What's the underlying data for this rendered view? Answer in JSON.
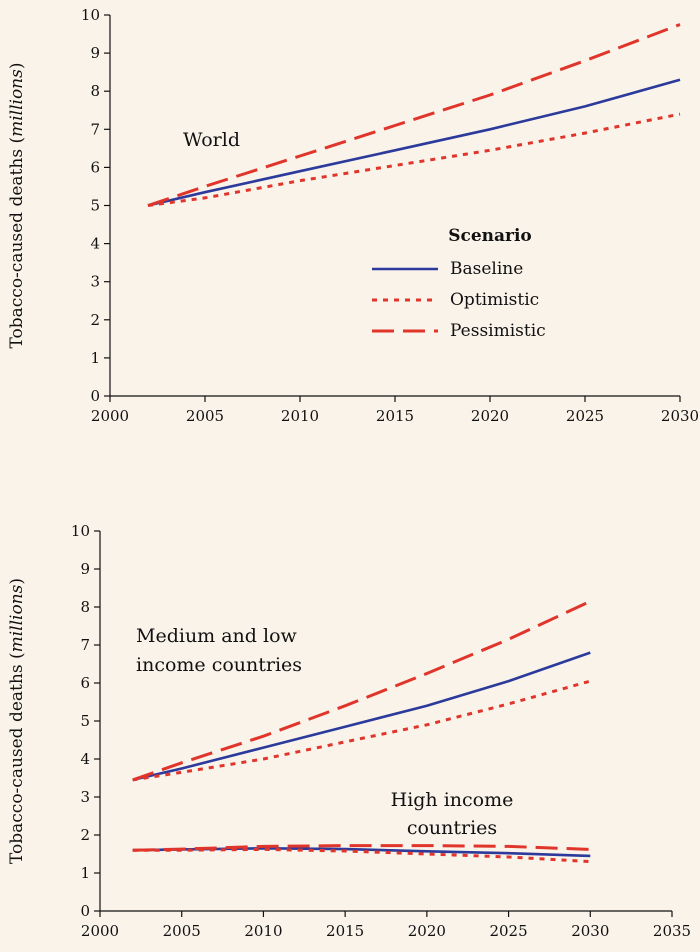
{
  "chart_data": [
    {
      "type": "line",
      "annotation": [
        "World"
      ],
      "ylabel_prefix": "Tobacco-caused deaths (",
      "ylabel_unit": "millions",
      "ylabel_suffix": ")",
      "xlim": [
        2000,
        2030
      ],
      "ylim": [
        0,
        10
      ],
      "xticks": [
        2000,
        2005,
        2010,
        2015,
        2020,
        2025,
        2030
      ],
      "yticks": [
        0,
        1,
        2,
        3,
        4,
        5,
        6,
        7,
        8,
        9,
        10
      ],
      "grid": false,
      "legend": {
        "title": "Scenario",
        "placement": "center-right",
        "entries": [
          "Baseline",
          "Optimistic",
          "Pessimistic"
        ]
      },
      "series": [
        {
          "name": "Baseline",
          "style": "solid",
          "color": "#2b3a9b",
          "x": [
            2002,
            2005,
            2010,
            2015,
            2020,
            2025,
            2030
          ],
          "y": [
            5.0,
            5.35,
            5.9,
            6.45,
            7.0,
            7.6,
            8.3
          ]
        },
        {
          "name": "Optimistic",
          "style": "dotted",
          "color": "#e0352b",
          "x": [
            2002,
            2005,
            2010,
            2015,
            2020,
            2025,
            2030
          ],
          "y": [
            5.0,
            5.2,
            5.65,
            6.05,
            6.45,
            6.9,
            7.4
          ]
        },
        {
          "name": "Pessimistic",
          "style": "dashed",
          "color": "#e0352b",
          "x": [
            2002,
            2005,
            2010,
            2015,
            2020,
            2025,
            2030
          ],
          "y": [
            5.0,
            5.5,
            6.3,
            7.1,
            7.9,
            8.8,
            9.75
          ]
        }
      ]
    },
    {
      "type": "line",
      "annotations": [
        [
          "Medium and low",
          "income countries"
        ],
        [
          "High income",
          "countries"
        ]
      ],
      "ylabel_prefix": "Tobacco-caused deaths (",
      "ylabel_unit": "millions",
      "ylabel_suffix": ")",
      "xlim": [
        2000,
        2035
      ],
      "ylim": [
        0,
        10
      ],
      "xticks": [
        2000,
        2005,
        2010,
        2015,
        2020,
        2025,
        2030,
        2035
      ],
      "yticks": [
        0,
        1,
        2,
        3,
        4,
        5,
        6,
        7,
        8,
        9,
        10
      ],
      "grid": false,
      "series": [
        {
          "group": "Medium and low income countries",
          "scenario": "Baseline",
          "style": "solid",
          "color": "#2b3a9b",
          "x": [
            2002,
            2005,
            2010,
            2015,
            2020,
            2025,
            2030
          ],
          "y": [
            3.45,
            3.75,
            4.3,
            4.85,
            5.4,
            6.05,
            6.8
          ]
        },
        {
          "group": "Medium and low income countries",
          "scenario": "Optimistic",
          "style": "dotted",
          "color": "#e0352b",
          "x": [
            2002,
            2005,
            2010,
            2015,
            2020,
            2025,
            2030
          ],
          "y": [
            3.45,
            3.65,
            4.0,
            4.45,
            4.9,
            5.45,
            6.05
          ]
        },
        {
          "group": "Medium and low income countries",
          "scenario": "Pessimistic",
          "style": "dashed",
          "color": "#e0352b",
          "x": [
            2002,
            2005,
            2010,
            2015,
            2020,
            2025,
            2030
          ],
          "y": [
            3.45,
            3.9,
            4.6,
            5.4,
            6.25,
            7.15,
            8.15
          ]
        },
        {
          "group": "High income countries",
          "scenario": "Baseline",
          "style": "solid",
          "color": "#2b3a9b",
          "x": [
            2002,
            2005,
            2010,
            2015,
            2020,
            2025,
            2030
          ],
          "y": [
            1.6,
            1.62,
            1.65,
            1.63,
            1.57,
            1.52,
            1.45
          ]
        },
        {
          "group": "High income countries",
          "scenario": "Optimistic",
          "style": "dotted",
          "color": "#e0352b",
          "x": [
            2002,
            2005,
            2010,
            2015,
            2020,
            2025,
            2030
          ],
          "y": [
            1.6,
            1.6,
            1.62,
            1.58,
            1.5,
            1.42,
            1.3
          ]
        },
        {
          "group": "High income countries",
          "scenario": "Pessimistic",
          "style": "dashed",
          "color": "#e0352b",
          "x": [
            2002,
            2005,
            2010,
            2015,
            2020,
            2025,
            2030
          ],
          "y": [
            1.6,
            1.63,
            1.7,
            1.72,
            1.72,
            1.7,
            1.62
          ]
        }
      ]
    }
  ]
}
